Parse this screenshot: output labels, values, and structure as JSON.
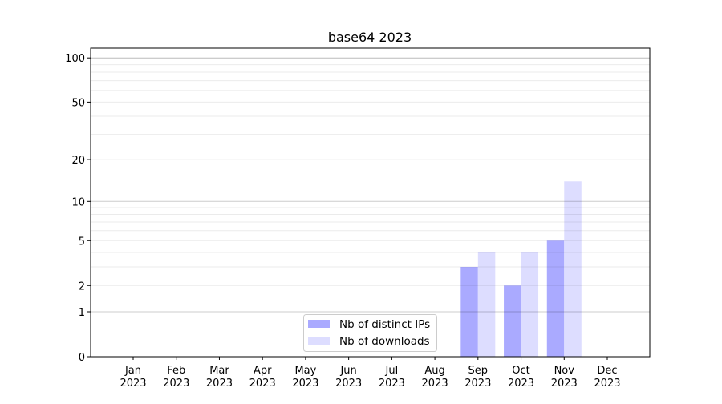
{
  "chart_data": {
    "type": "bar",
    "title": "base64 2023",
    "xlabel": "",
    "ylabel": "",
    "y_scale": "log(1+y)",
    "ylim": [
      0,
      116
    ],
    "y_ticks": [
      0,
      1,
      2,
      5,
      10,
      20,
      50,
      100
    ],
    "y_tick_labels": [
      "0",
      "1",
      "2",
      "5",
      "10",
      "20",
      "50",
      "100"
    ],
    "grid": true,
    "legend_position": "lower-center",
    "categories": [
      [
        "Jan",
        "2023"
      ],
      [
        "Feb",
        "2023"
      ],
      [
        "Mar",
        "2023"
      ],
      [
        "Apr",
        "2023"
      ],
      [
        "May",
        "2023"
      ],
      [
        "Jun",
        "2023"
      ],
      [
        "Jul",
        "2023"
      ],
      [
        "Aug",
        "2023"
      ],
      [
        "Sep",
        "2023"
      ],
      [
        "Oct",
        "2023"
      ],
      [
        "Nov",
        "2023"
      ],
      [
        "Dec",
        "2023"
      ]
    ],
    "series": [
      {
        "name": "Nb of distinct IPs",
        "color": "#aaaaff",
        "values": [
          0,
          0,
          0,
          0,
          0,
          0,
          0,
          0,
          3,
          2,
          5,
          0
        ]
      },
      {
        "name": "Nb of downloads",
        "color": "#ddddff",
        "values": [
          0,
          0,
          0,
          0,
          0,
          0,
          0,
          0,
          4,
          4,
          14,
          0
        ]
      }
    ]
  }
}
